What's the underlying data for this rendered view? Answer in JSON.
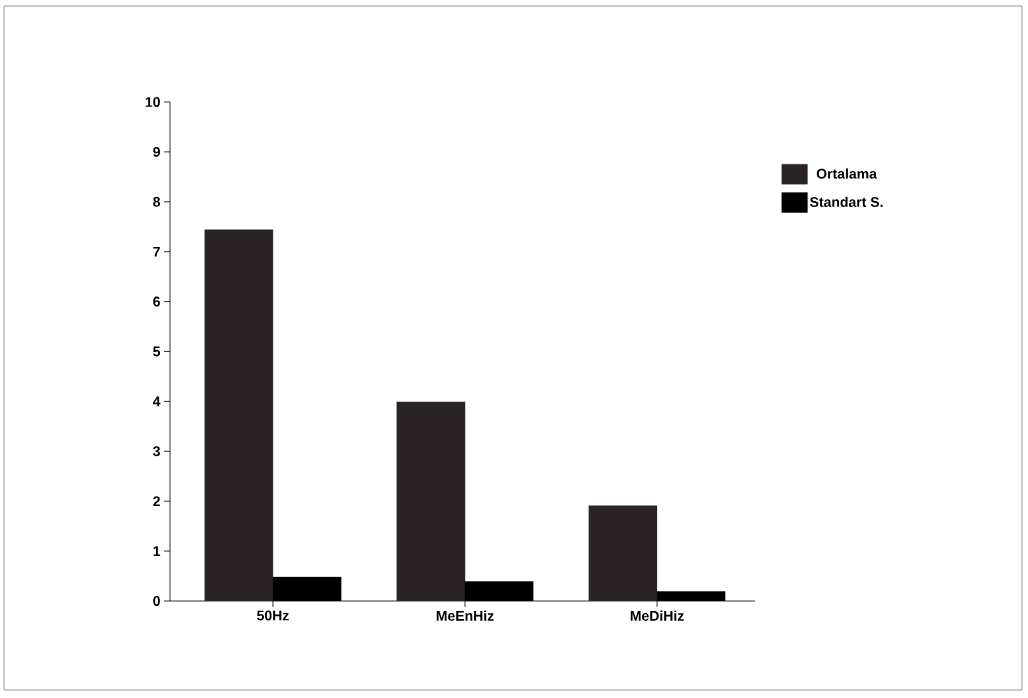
{
  "chart_data": {
    "type": "bar",
    "categories": [
      "50Hz",
      "MeEnHiz",
      "MeDiHiz"
    ],
    "series": [
      {
        "name": "Ortalama",
        "color": "#2b2426",
        "values": [
          7.44,
          3.99,
          1.91
        ]
      },
      {
        "name": "Standart S.",
        "color": "#000000",
        "values": [
          0.48,
          0.39,
          0.19
        ]
      }
    ],
    "ylim": [
      0,
      10
    ],
    "yticks": [
      0,
      1,
      2,
      3,
      4,
      5,
      6,
      7,
      8,
      9,
      10
    ],
    "legend": "right"
  }
}
